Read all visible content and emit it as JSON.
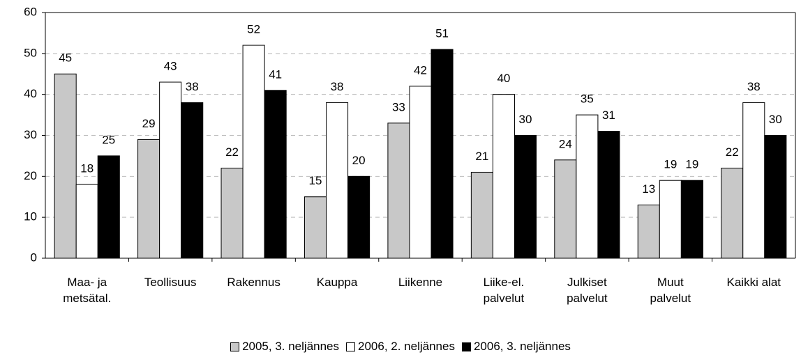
{
  "chart_data": {
    "type": "bar",
    "categories": [
      "Maa- ja\nmetsätal.",
      "Teollisuus",
      "Rakennus",
      "Kauppa",
      "Liikenne",
      "Liike-el.\npalvelut",
      "Julkiset\npalvelut",
      "Muut\npalvelut",
      "Kaikki alat"
    ],
    "series": [
      {
        "name": "2005, 3. neljännes",
        "color": "#c8c8c8",
        "values": [
          45,
          29,
          22,
          15,
          33,
          21,
          24,
          13,
          22
        ]
      },
      {
        "name": "2006, 2. neljännes",
        "color": "#ffffff",
        "values": [
          18,
          43,
          52,
          38,
          42,
          40,
          35,
          19,
          38
        ]
      },
      {
        "name": "2006, 3. neljännes",
        "color": "#000000",
        "values": [
          25,
          38,
          41,
          20,
          51,
          30,
          31,
          19,
          30
        ]
      }
    ],
    "ylim": [
      0,
      60
    ],
    "yticks": [
      0,
      10,
      20,
      30,
      40,
      50,
      60
    ],
    "grid": true,
    "legend": "bottom"
  }
}
